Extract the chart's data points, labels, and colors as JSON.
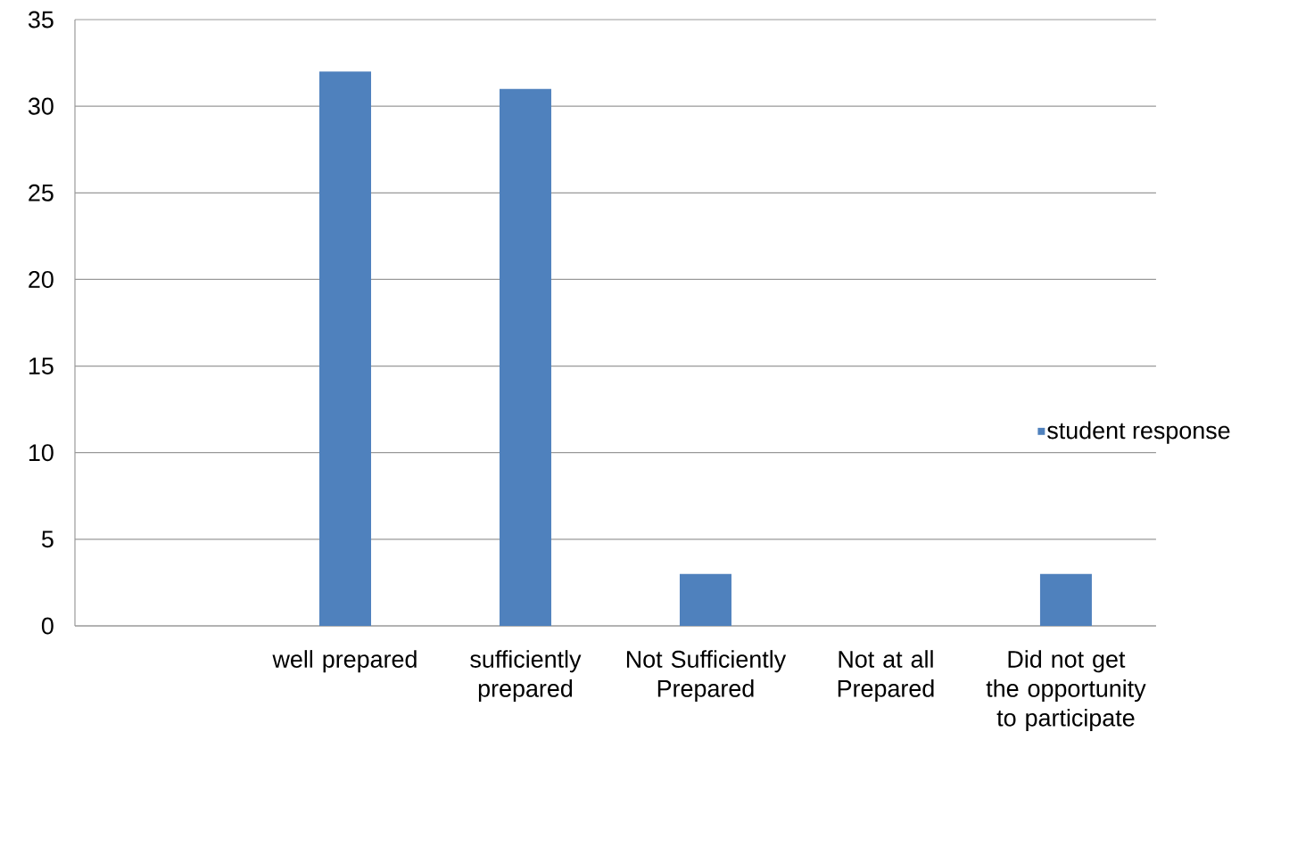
{
  "chart_data": {
    "type": "bar",
    "categories": [
      null,
      "well prepared",
      "sufficiently prepared",
      "Not Sufficiently Prepared",
      "Not at all Prepared",
      "Did not get the opportunity to participate"
    ],
    "series": [
      {
        "name": "student response",
        "color": "#4f81bd",
        "values": [
          null,
          32,
          31,
          3,
          0,
          3
        ]
      }
    ],
    "ylim": [
      0,
      35
    ],
    "yticks": [
      0,
      5,
      10,
      15,
      20,
      25,
      30,
      35
    ],
    "grid": "y",
    "legend": "right"
  }
}
